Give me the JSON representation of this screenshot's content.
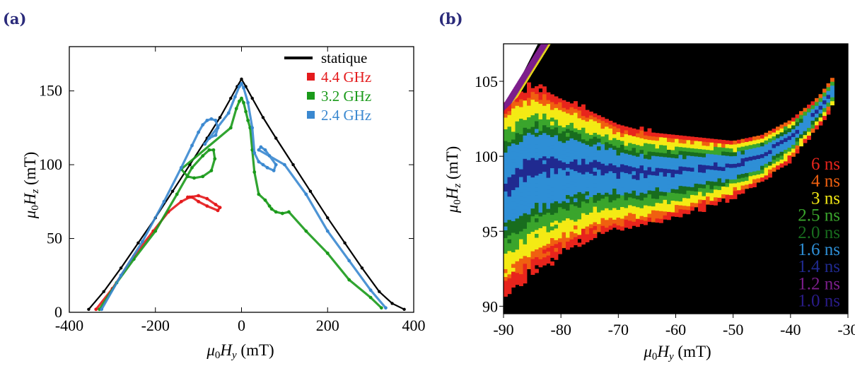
{
  "panels": {
    "a": "(a)",
    "b": "(b)"
  },
  "chart_data": [
    {
      "type": "line",
      "panel": "(a)",
      "xlabel": "μ0Hy (mT)",
      "ylabel": "μ0Hz (mT)",
      "xlim": [
        -400,
        400
      ],
      "ylim": [
        0,
        180
      ],
      "xticks": [
        -400,
        -200,
        0,
        200,
        400
      ],
      "xtick_labels": [
        "-400",
        "-200",
        "0",
        "200",
        "400"
      ],
      "yticks": [
        0,
        50,
        100,
        150
      ],
      "ytick_labels": [
        "0",
        "50",
        "100",
        "150"
      ],
      "legend_position": "top-right",
      "series": [
        {
          "name": "statique",
          "color": "#000000",
          "style": "line",
          "points": [
            [
              -355,
              2
            ],
            [
              -320,
              14
            ],
            [
              -280,
              30
            ],
            [
              -240,
              47
            ],
            [
              -200,
              64
            ],
            [
              -160,
              82
            ],
            [
              -120,
              100
            ],
            [
              -80,
              118
            ],
            [
              -50,
              132
            ],
            [
              -25,
              145
            ],
            [
              -10,
              153
            ],
            [
              0,
              158
            ],
            [
              10,
              153
            ],
            [
              25,
              145
            ],
            [
              50,
              132
            ],
            [
              80,
              118
            ],
            [
              120,
              100
            ],
            [
              160,
              82
            ],
            [
              200,
              64
            ],
            [
              240,
              47
            ],
            [
              280,
              30
            ],
            [
              320,
              14
            ],
            [
              350,
              6
            ],
            [
              378,
              2
            ]
          ]
        },
        {
          "name": "4.4 GHz",
          "color": "#e41a1c",
          "style": "dots",
          "points": [
            [
              -338,
              2
            ],
            [
              -300,
              16
            ],
            [
              -250,
              38
            ],
            [
              -205,
              55
            ],
            [
              -170,
              68
            ],
            [
              -140,
              75
            ],
            [
              -120,
              78
            ],
            [
              -100,
              79
            ],
            [
              -80,
              77
            ],
            [
              -60,
              73
            ],
            [
              -50,
              71
            ],
            [
              -55,
              69
            ],
            [
              -80,
              72
            ],
            [
              -100,
              75
            ],
            [
              -115,
              78
            ],
            [
              -125,
              78
            ]
          ]
        },
        {
          "name": "3.2 GHz",
          "color": "#1a9a1a",
          "style": "dots",
          "points": [
            [
              -330,
              2
            ],
            [
              -290,
              20
            ],
            [
              -250,
              36
            ],
            [
              -200,
              55
            ],
            [
              -150,
              80
            ],
            [
              -115,
              98
            ],
            [
              -90,
              106
            ],
            [
              -75,
              110
            ],
            [
              -65,
              110
            ],
            [
              -62,
              104
            ],
            [
              -70,
              96
            ],
            [
              -90,
              92
            ],
            [
              -110,
              91
            ],
            [
              -125,
              92
            ],
            [
              -140,
              97
            ],
            [
              -25,
              125
            ],
            [
              -12,
              138
            ],
            [
              -5,
              143
            ],
            [
              0,
              145
            ],
            [
              5,
              142
            ],
            [
              10,
              136
            ],
            [
              15,
              130
            ],
            [
              20,
              125
            ],
            [
              25,
              110
            ],
            [
              30,
              95
            ],
            [
              40,
              80
            ],
            [
              55,
              76
            ],
            [
              65,
              72
            ],
            [
              70,
              70
            ],
            [
              80,
              68
            ],
            [
              95,
              67
            ],
            [
              110,
              68
            ],
            [
              150,
              55
            ],
            [
              200,
              40
            ],
            [
              250,
              22
            ],
            [
              300,
              10
            ],
            [
              325,
              3
            ]
          ]
        },
        {
          "name": "2.4 GHz",
          "color": "#3a88d0",
          "style": "dots",
          "points": [
            [
              -325,
              2
            ],
            [
              -280,
              25
            ],
            [
              -230,
              48
            ],
            [
              -180,
              75
            ],
            [
              -140,
              98
            ],
            [
              -115,
              113
            ],
            [
              -100,
              122
            ],
            [
              -90,
              127
            ],
            [
              -80,
              130
            ],
            [
              -70,
              131
            ],
            [
              -60,
              130
            ],
            [
              -55,
              125
            ],
            [
              -60,
              120
            ],
            [
              -75,
              118
            ],
            [
              -85,
              114
            ],
            [
              -75,
              118
            ],
            [
              -30,
              135
            ],
            [
              -15,
              146
            ],
            [
              -5,
              153
            ],
            [
              0,
              155
            ],
            [
              5,
              152
            ],
            [
              15,
              142
            ],
            [
              25,
              125
            ],
            [
              30,
              108
            ],
            [
              40,
              102
            ],
            [
              50,
              100
            ],
            [
              60,
              98
            ],
            [
              75,
              96
            ],
            [
              80,
              100
            ],
            [
              65,
              106
            ],
            [
              55,
              110
            ],
            [
              45,
              112
            ],
            [
              40,
              110
            ],
            [
              100,
              100
            ],
            [
              150,
              80
            ],
            [
              200,
              55
            ],
            [
              250,
              35
            ],
            [
              300,
              15
            ],
            [
              335,
              3
            ]
          ]
        }
      ]
    },
    {
      "type": "heatmap",
      "panel": "(b)",
      "xlabel": "μ0Hy (mT)",
      "ylabel": "μ0Hz (mT)",
      "xlim": [
        -90,
        -30
      ],
      "ylim": [
        89.5,
        107.5
      ],
      "xticks": [
        -90,
        -80,
        -70,
        -60,
        -50,
        -40,
        -30
      ],
      "xtick_labels": [
        "-90",
        "-80",
        "-70",
        "-60",
        "-50",
        "-40",
        "-30"
      ],
      "yticks": [
        90,
        95,
        100,
        105
      ],
      "ytick_labels": [
        "90",
        "95",
        "100",
        "105"
      ],
      "background": "#000000",
      "region_boundaries": {
        "x": [
          -90,
          -85,
          -80,
          -75,
          -70,
          -65,
          -60,
          -55,
          -50,
          -45,
          -40,
          -35,
          -32
        ],
        "lower_edge": [
          90.8,
          92.3,
          93.6,
          94.6,
          95.2,
          95.5,
          96.0,
          96.6,
          97.3,
          98.3,
          99.8,
          102.0,
          103.8
        ],
        "upper_edge": [
          103.5,
          104.8,
          103.8,
          103.0,
          102.1,
          101.6,
          101.4,
          101.2,
          101.0,
          101.4,
          102.4,
          104.0,
          105.6
        ]
      },
      "legend_position": "right",
      "color_scale": [
        {
          "label": "6 ns",
          "color": "#e8241c"
        },
        {
          "label": "4 ns",
          "color": "#f06010"
        },
        {
          "label": "3 ns",
          "color": "#f4ea14"
        },
        {
          "label": "2.5 ns",
          "color": "#3aa52c"
        },
        {
          "label": "2.0 ns",
          "color": "#186d1e"
        },
        {
          "label": "1.6 ns",
          "color": "#2e8fd6"
        },
        {
          "label": "1.4 ns",
          "color": "#202a90"
        },
        {
          "label": "1.2 ns",
          "color": "#7d1e8c"
        },
        {
          "label": "1.0 ns",
          "color": "#2a1c8a"
        }
      ]
    }
  ]
}
